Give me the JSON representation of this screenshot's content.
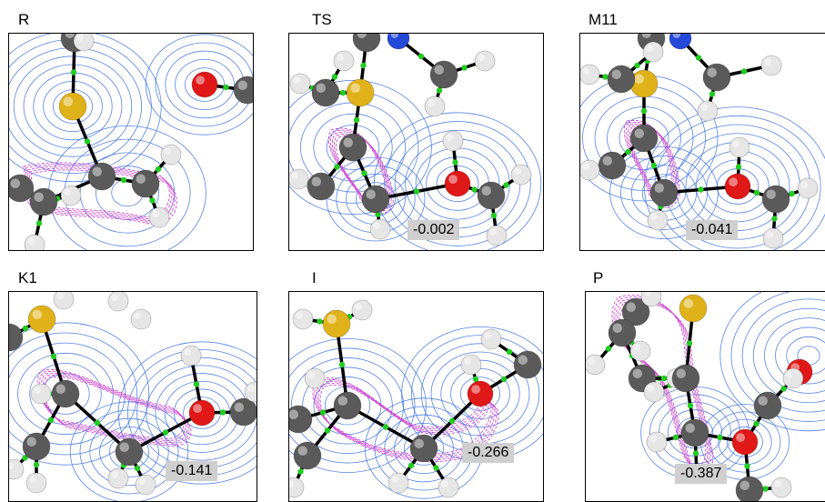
{
  "panels": [
    {
      "id": "R",
      "label": "R",
      "value": ""
    },
    {
      "id": "TS",
      "label": "TS",
      "value": "-0.002"
    },
    {
      "id": "M11",
      "label": "M11",
      "value": "-0.041"
    },
    {
      "id": "K1",
      "label": "K1",
      "value": "-0.141"
    },
    {
      "id": "I",
      "label": "I",
      "value": "-0.266"
    },
    {
      "id": "P",
      "label": "P",
      "value": "-0.387"
    }
  ],
  "colors": {
    "contour": "#3a6fe0",
    "contour_dashed": "#d040d0",
    "bond": "#000000",
    "critical_point": "#22cc22",
    "carbon": "#5a5a5a",
    "hydrogen": "#e6e6e6",
    "sulfur": "#e0b21a",
    "oxygen": "#e01818",
    "nitrogen": "#2448d8",
    "value_background": "#cfcfcf"
  },
  "icons": [
    "molecule-plot",
    "electron-density-contours",
    "bond-critical-point"
  ]
}
